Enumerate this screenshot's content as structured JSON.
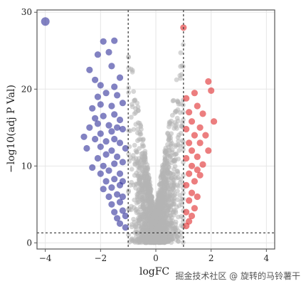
{
  "chart_data": {
    "type": "scatter",
    "title": "",
    "xlabel": "logFC",
    "ylabel": "−log10(adj P Val)",
    "xlim": [
      -4.3,
      4.3
    ],
    "ylim": [
      -0.8,
      30.3
    ],
    "xticks": [
      {
        "value": -4,
        "label": "−4"
      },
      {
        "value": -2,
        "label": "−2"
      },
      {
        "value": 0,
        "label": "0"
      },
      {
        "value": 2,
        "label": "2"
      },
      {
        "value": 4,
        "label": "4"
      }
    ],
    "yticks": [
      {
        "value": 0,
        "label": "0"
      },
      {
        "value": 10,
        "label": "10"
      },
      {
        "value": 20,
        "label": "20"
      },
      {
        "value": 30,
        "label": "30"
      }
    ],
    "grid": true,
    "thresholds": {
      "logFC": [
        -1,
        1
      ],
      "neg_log10_p": 1.3
    },
    "colors": {
      "down": "#2e2e9a",
      "up": "#e0282a",
      "ns": "#b4b4b4",
      "border": "#555555",
      "threshold_line": "#333333",
      "grid": "#e6e6e6"
    },
    "series": [
      {
        "group": "down",
        "points": [
          [
            -4.0,
            28.8
          ],
          [
            -1.9,
            26.2
          ],
          [
            -1.5,
            26.3
          ],
          [
            -2.1,
            24.5
          ],
          [
            -1.7,
            24.8
          ],
          [
            -2.4,
            22.5
          ],
          [
            -1.6,
            23.0
          ],
          [
            -2.2,
            21.2
          ],
          [
            -1.3,
            21.5
          ],
          [
            -2.0,
            20.5
          ],
          [
            -1.5,
            20.3
          ],
          [
            -2.1,
            19.0
          ],
          [
            -1.8,
            19.5
          ],
          [
            -1.4,
            19.2
          ],
          [
            -2.3,
            17.5
          ],
          [
            -2.0,
            18.0
          ],
          [
            -1.6,
            17.8
          ],
          [
            -1.2,
            18.2
          ],
          [
            -2.2,
            16.2
          ],
          [
            -1.9,
            16.5
          ],
          [
            -1.5,
            16.7
          ],
          [
            -1.3,
            16.0
          ],
          [
            -2.4,
            15.0
          ],
          [
            -2.1,
            15.5
          ],
          [
            -1.7,
            15.3
          ],
          [
            -1.4,
            15.0
          ],
          [
            -2.0,
            14.2
          ],
          [
            -1.6,
            14.5
          ],
          [
            -1.2,
            14.8
          ],
          [
            -2.2,
            13.5
          ],
          [
            -1.8,
            13.2
          ],
          [
            -1.5,
            13.5
          ],
          [
            -1.3,
            13.0
          ],
          [
            -2.0,
            12.5
          ],
          [
            -1.6,
            12.0
          ],
          [
            -1.1,
            12.3
          ],
          [
            -2.1,
            11.0
          ],
          [
            -1.8,
            11.5
          ],
          [
            -1.4,
            11.2
          ],
          [
            -1.9,
            10.0
          ],
          [
            -1.5,
            10.3
          ],
          [
            -1.2,
            10.5
          ],
          [
            -2.0,
            9.0
          ],
          [
            -1.7,
            9.4
          ],
          [
            -1.3,
            9.0
          ],
          [
            -1.8,
            8.0
          ],
          [
            -1.5,
            8.3
          ],
          [
            -1.2,
            8.0
          ],
          [
            -1.9,
            7.0
          ],
          [
            -1.6,
            7.2
          ],
          [
            -1.3,
            7.5
          ],
          [
            -1.7,
            6.0
          ],
          [
            -1.4,
            6.3
          ],
          [
            -1.2,
            6.0
          ],
          [
            -1.6,
            5.0
          ],
          [
            -1.3,
            5.3
          ],
          [
            -1.5,
            4.0
          ],
          [
            -1.2,
            4.2
          ],
          [
            -1.4,
            3.2
          ],
          [
            -1.1,
            3.5
          ],
          [
            -1.3,
            2.5
          ],
          [
            -1.1,
            2.0
          ],
          [
            -2.5,
            12.3
          ],
          [
            -2.3,
            9.8
          ],
          [
            -2.6,
            13.8
          ]
        ]
      },
      {
        "group": "up",
        "points": [
          [
            1.0,
            28.0
          ],
          [
            1.9,
            21.0
          ],
          [
            2.0,
            19.8
          ],
          [
            1.4,
            19.5
          ],
          [
            1.1,
            18.8
          ],
          [
            1.5,
            17.8
          ],
          [
            1.2,
            17.0
          ],
          [
            1.7,
            16.8
          ],
          [
            2.1,
            15.8
          ],
          [
            1.3,
            15.8
          ],
          [
            1.6,
            15.0
          ],
          [
            1.1,
            14.8
          ],
          [
            1.8,
            14.0
          ],
          [
            1.4,
            14.0
          ],
          [
            1.2,
            13.0
          ],
          [
            1.6,
            13.0
          ],
          [
            1.3,
            12.0
          ],
          [
            1.9,
            12.0
          ],
          [
            1.1,
            11.0
          ],
          [
            1.5,
            11.2
          ],
          [
            1.7,
            10.2
          ],
          [
            1.3,
            10.0
          ],
          [
            1.2,
            9.0
          ],
          [
            1.6,
            8.8
          ],
          [
            1.4,
            8.0
          ],
          [
            1.1,
            7.5
          ],
          [
            1.3,
            6.5
          ],
          [
            1.5,
            6.0
          ],
          [
            1.2,
            5.5
          ],
          [
            1.4,
            4.5
          ],
          [
            1.1,
            4.0
          ],
          [
            1.3,
            3.5
          ],
          [
            1.2,
            2.8
          ],
          [
            1.1,
            2.2
          ],
          [
            1.5,
            9.5
          ]
        ]
      }
    ]
  },
  "watermark": "掘金技术社区 @ 旋转的马铃薯干"
}
